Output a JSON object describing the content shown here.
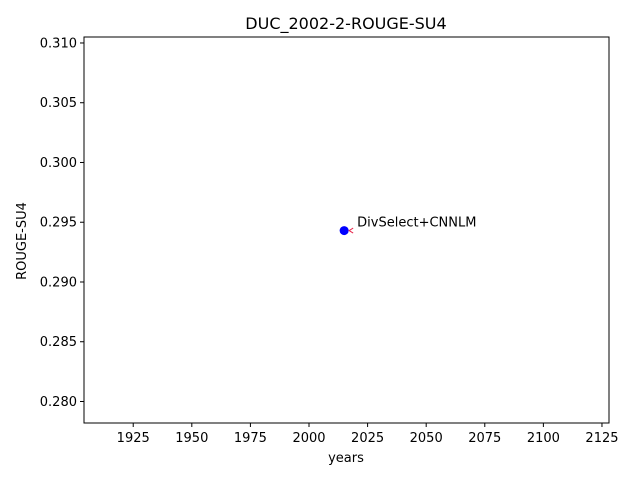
{
  "chart_data": {
    "type": "scatter",
    "title": "DUC_2002-2-ROUGE-SU4",
    "xlabel": "years",
    "ylabel": "ROUGE-SU4",
    "xlim": [
      1904,
      2128
    ],
    "ylim": [
      0.2782,
      0.3105
    ],
    "x_ticks": [
      1925,
      1950,
      1975,
      2000,
      2025,
      2050,
      2075,
      2100,
      2125
    ],
    "y_ticks": [
      0.28,
      0.285,
      0.29,
      0.295,
      0.3,
      0.305,
      0.31
    ],
    "grid": false,
    "points": [
      {
        "x": 2015,
        "y": 0.2943,
        "label": "DivSelect+CNNLM",
        "color": "#0000ff"
      }
    ]
  }
}
